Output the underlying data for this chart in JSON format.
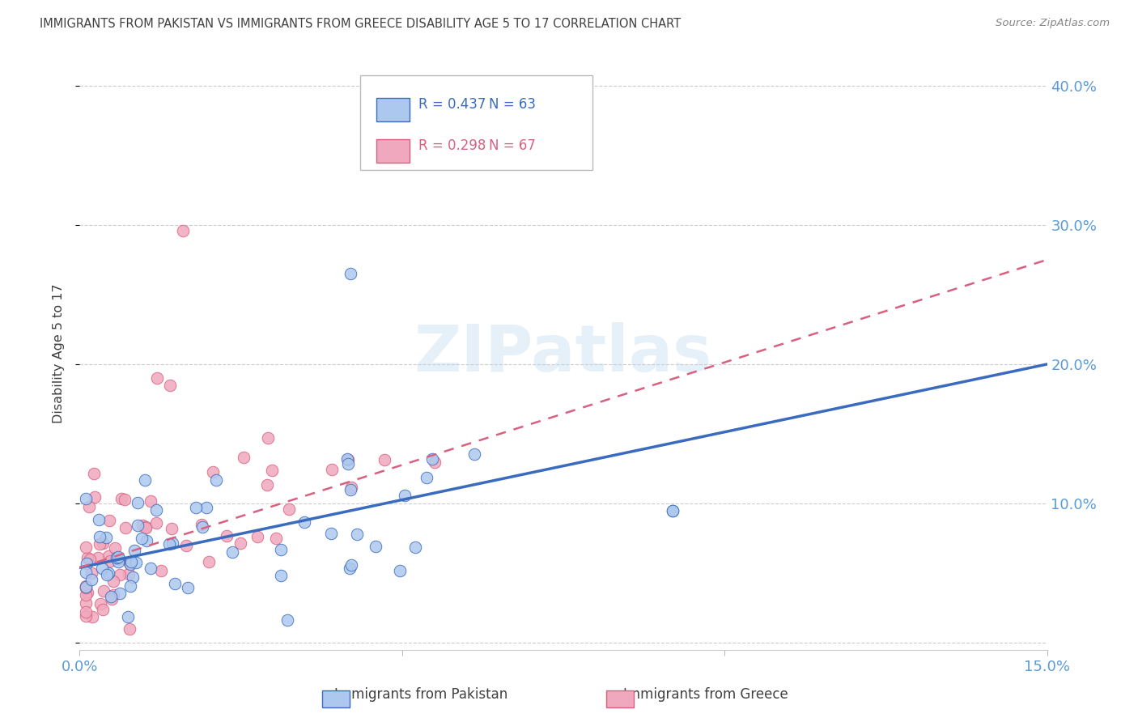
{
  "title": "IMMIGRANTS FROM PAKISTAN VS IMMIGRANTS FROM GREECE DISABILITY AGE 5 TO 17 CORRELATION CHART",
  "source": "Source: ZipAtlas.com",
  "ylabel": "Disability Age 5 to 17",
  "xlim": [
    0.0,
    0.15
  ],
  "ylim": [
    -0.005,
    0.42
  ],
  "pakistan_R": 0.437,
  "pakistan_N": 63,
  "greece_R": 0.298,
  "greece_N": 67,
  "pakistan_color": "#adc8ee",
  "pakistan_line_color": "#3a6bbf",
  "greece_color": "#f0a8be",
  "greece_line_color": "#d96080",
  "background_color": "#ffffff",
  "grid_color": "#cccccc",
  "axis_label_color": "#5b9bd5",
  "title_color": "#404040",
  "pak_line_y0": 0.054,
  "pak_line_y1": 0.2,
  "grc_line_y0": 0.054,
  "grc_line_y1": 0.275
}
